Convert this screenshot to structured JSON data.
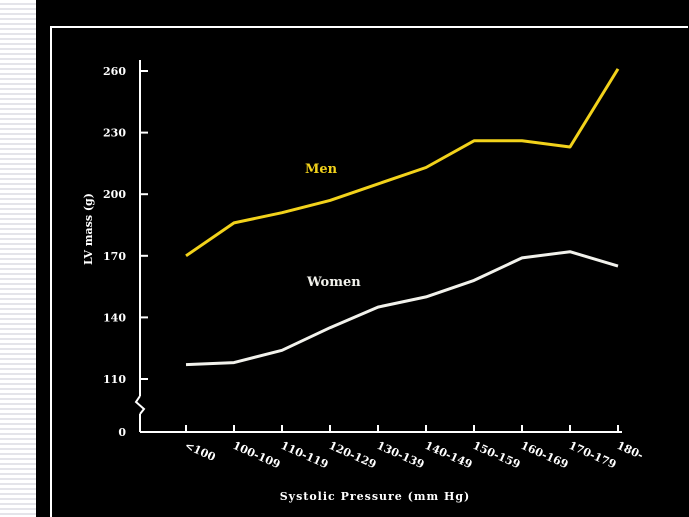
{
  "chart_data": {
    "type": "line",
    "xlabel": "Systolic Pressure (mm Hg)",
    "ylabel": "LV mass (g)",
    "categories": [
      "<100",
      "100-109",
      "110-119",
      "120-129",
      "130-139",
      "140-149",
      "150-159",
      "160-169",
      "170-179",
      "180-"
    ],
    "y_ticks": [
      0,
      110,
      140,
      170,
      200,
      230,
      260
    ],
    "ylim": [
      110,
      260
    ],
    "axis_break": true,
    "grid": false,
    "series": [
      {
        "name": "Men",
        "color": "#f2d21b",
        "values": [
          170,
          186,
          191,
          197,
          205,
          213,
          226,
          226,
          223,
          261
        ]
      },
      {
        "name": "Women",
        "color": "#f2f2ec",
        "values": [
          117,
          118,
          124,
          135,
          145,
          150,
          158,
          169,
          172,
          165
        ]
      }
    ]
  },
  "colors": {
    "background": "#000000",
    "axis": "#ffffff",
    "frame_left": "#ffffff"
  }
}
